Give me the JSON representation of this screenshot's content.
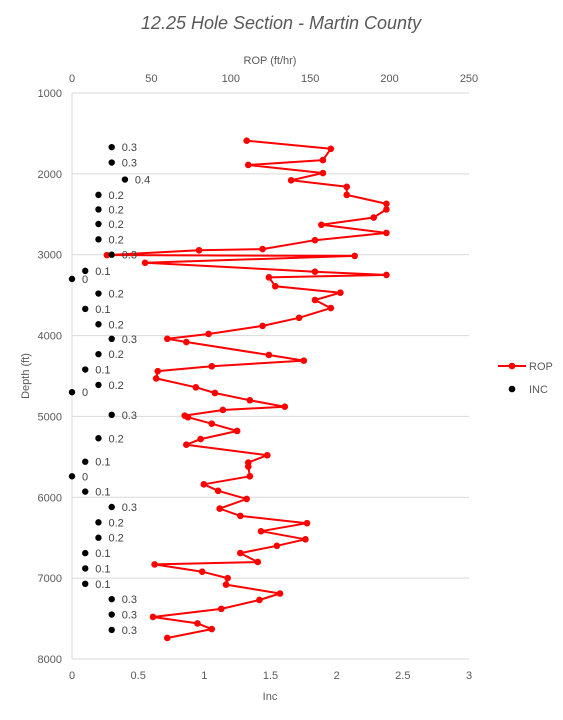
{
  "chart_data": {
    "type": "scatter",
    "title": "12.25 Hole Section - Martin County",
    "x_top_label": "ROP (ft/hr)",
    "x_bottom_label": "Inc",
    "ylabel": "Depth (ft)",
    "x_top_range": [
      0,
      250
    ],
    "x_top_ticks": [
      "0",
      "50",
      "100",
      "150",
      "200",
      "250"
    ],
    "x_bottom_range": [
      0,
      3
    ],
    "x_bottom_ticks": [
      "0",
      "0.5",
      "1",
      "1.5",
      "2",
      "2.5",
      "3"
    ],
    "y_range": [
      1000,
      8000
    ],
    "y_reversed": true,
    "y_ticks": [
      "1000",
      "2000",
      "3000",
      "4000",
      "5000",
      "6000",
      "7000",
      "8000"
    ],
    "grid": "horizontal",
    "legend_position": "right",
    "colors": {
      "rop": "#ff0000",
      "inc": "#000000",
      "grid": "#d9d9d9",
      "text": "#595959"
    },
    "series": [
      {
        "name": "ROP",
        "axis": "top",
        "style": "line-markers",
        "points": [
          [
            110,
            1590
          ],
          [
            163,
            1690
          ],
          [
            158,
            1830
          ],
          [
            111,
            1890
          ],
          [
            158,
            1990
          ],
          [
            138,
            2080
          ],
          [
            173,
            2160
          ],
          [
            173,
            2260
          ],
          [
            198,
            2370
          ],
          [
            198,
            2440
          ],
          [
            190,
            2540
          ],
          [
            157,
            2630
          ],
          [
            198,
            2730
          ],
          [
            153,
            2820
          ],
          [
            120,
            2930
          ],
          [
            80,
            2945
          ],
          [
            22,
            3005
          ],
          [
            178,
            3015
          ],
          [
            46,
            3100
          ],
          [
            153,
            3210
          ],
          [
            198,
            3250
          ],
          [
            124,
            3280
          ],
          [
            128,
            3390
          ],
          [
            169,
            3470
          ],
          [
            153,
            3560
          ],
          [
            163,
            3660
          ],
          [
            143,
            3780
          ],
          [
            120,
            3880
          ],
          [
            86,
            3980
          ],
          [
            60,
            4040
          ],
          [
            72,
            4080
          ],
          [
            124,
            4240
          ],
          [
            146,
            4310
          ],
          [
            88,
            4380
          ],
          [
            54,
            4440
          ],
          [
            53,
            4530
          ],
          [
            78,
            4640
          ],
          [
            90,
            4710
          ],
          [
            112,
            4800
          ],
          [
            134,
            4880
          ],
          [
            95,
            4920
          ],
          [
            71,
            4990
          ],
          [
            73,
            5010
          ],
          [
            88,
            5090
          ],
          [
            104,
            5180
          ],
          [
            81,
            5280
          ],
          [
            72,
            5350
          ],
          [
            123,
            5480
          ],
          [
            111,
            5570
          ],
          [
            111,
            5620
          ],
          [
            112,
            5740
          ],
          [
            83,
            5840
          ],
          [
            92,
            5920
          ],
          [
            110,
            6020
          ],
          [
            93,
            6140
          ],
          [
            106,
            6230
          ],
          [
            148,
            6320
          ],
          [
            119,
            6420
          ],
          [
            147,
            6520
          ],
          [
            129,
            6600
          ],
          [
            106,
            6690
          ],
          [
            117,
            6800
          ],
          [
            52,
            6830
          ],
          [
            82,
            6920
          ],
          [
            98,
            7000
          ],
          [
            97,
            7080
          ],
          [
            131,
            7190
          ],
          [
            118,
            7270
          ],
          [
            94,
            7380
          ],
          [
            51,
            7480
          ],
          [
            79,
            7560
          ],
          [
            88,
            7630
          ],
          [
            60,
            7740
          ]
        ]
      },
      {
        "name": "INC",
        "axis": "bottom",
        "style": "markers",
        "points": [
          [
            0.3,
            1670
          ],
          [
            0.3,
            1860
          ],
          [
            0.4,
            2070
          ],
          [
            0.2,
            2260
          ],
          [
            0.2,
            2440
          ],
          [
            0.2,
            2620
          ],
          [
            0.2,
            2810
          ],
          [
            0.3,
            3000
          ],
          [
            0.1,
            3200
          ],
          [
            0,
            3300
          ],
          [
            0.2,
            3480
          ],
          [
            0.1,
            3670
          ],
          [
            0.2,
            3860
          ],
          [
            0.3,
            4040
          ],
          [
            0.2,
            4230
          ],
          [
            0.1,
            4420
          ],
          [
            0.2,
            4610
          ],
          [
            0,
            4700
          ],
          [
            0.3,
            4980
          ],
          [
            0.2,
            5270
          ],
          [
            0.1,
            5560
          ],
          [
            0,
            5740
          ],
          [
            0.1,
            5930
          ],
          [
            0.3,
            6120
          ],
          [
            0.2,
            6310
          ],
          [
            0.2,
            6500
          ],
          [
            0.1,
            6690
          ],
          [
            0.1,
            6880
          ],
          [
            0.1,
            7070
          ],
          [
            0.3,
            7260
          ],
          [
            0.3,
            7450
          ],
          [
            0.3,
            7640
          ]
        ],
        "labels": [
          "0.3",
          "0.3",
          "0.4",
          "0.2",
          "0.2",
          "0.2",
          "0.2",
          "0.3",
          "0.1",
          "0",
          "0.2",
          "0.1",
          "0.2",
          "0.3",
          "0.2",
          "0.1",
          "0.2",
          "0",
          "0.3",
          "0.2",
          "0.1",
          "0",
          "0.1",
          "0.3",
          "0.2",
          "0.2",
          "0.1",
          "0.1",
          "0.1",
          "0.3",
          "0.3",
          "0.3"
        ]
      }
    ]
  }
}
